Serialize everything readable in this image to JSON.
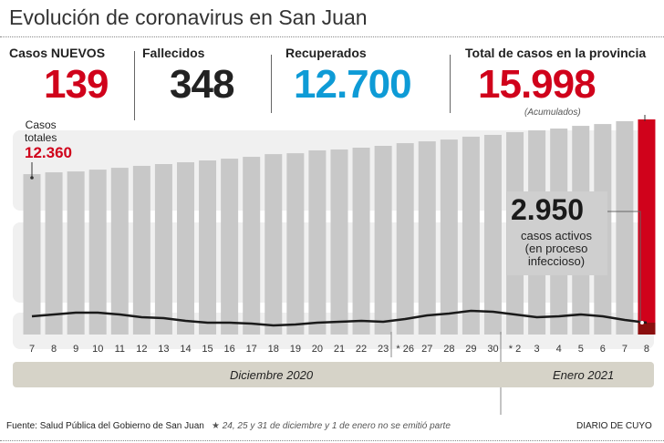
{
  "title": "Evolución de coronavirus en San Juan",
  "stats": {
    "new_cases": {
      "label": "Casos NUEVOS",
      "value": "139",
      "color": "#d0021b"
    },
    "deaths": {
      "label": "Fallecidos",
      "value": "348",
      "color": "#222222"
    },
    "recovered": {
      "label": "Recuperados",
      "value": "12.700",
      "color": "#0e9bd6"
    },
    "total": {
      "label": "Total de casos en la provincia",
      "value": "15.998",
      "note": "(Acumulados)",
      "color": "#d0021b"
    }
  },
  "annotations": {
    "first_label_1": "Casos",
    "first_label_2": "totales",
    "first_value": "12.360",
    "active_value": "2.950",
    "active_text_1": "casos activos",
    "active_text_2": "(en proceso",
    "active_text_3": "infeccioso)"
  },
  "chart_data": {
    "type": "bar",
    "categories": [
      "7",
      "8",
      "9",
      "10",
      "11",
      "12",
      "13",
      "14",
      "15",
      "16",
      "17",
      "18",
      "19",
      "20",
      "21",
      "22",
      "23",
      "26",
      "27",
      "28",
      "29",
      "30",
      "2",
      "3",
      "4",
      "5",
      "6",
      "7",
      "8"
    ],
    "tick_labels": [
      "7",
      "8",
      "9",
      "10",
      "11",
      "12",
      "13",
      "14",
      "15",
      "16",
      "17",
      "18",
      "19",
      "20",
      "21",
      "22",
      "23",
      "* 26",
      "27",
      "28",
      "29",
      "30",
      "* 2",
      "3",
      "4",
      "5",
      "6",
      "7",
      "8"
    ],
    "series": [
      {
        "key": "total",
        "values": [
          12360,
          12480,
          12540,
          12660,
          12780,
          12910,
          13030,
          13150,
          13270,
          13390,
          13510,
          13690,
          13750,
          13940,
          14000,
          14120,
          14240,
          14420,
          14540,
          14660,
          14850,
          14970,
          15150,
          15270,
          15390,
          15570,
          15690,
          15880,
          15998
        ]
      },
      {
        "key": "active",
        "type": "line",
        "values": [
          3370,
          3490,
          3610,
          3610,
          3490,
          3310,
          3250,
          3070,
          2950,
          2950,
          2890,
          2770,
          2830,
          2950,
          3010,
          3070,
          3010,
          3190,
          3430,
          3550,
          3730,
          3670,
          3490,
          3310,
          3370,
          3490,
          3370,
          3130,
          2950
        ]
      }
    ],
    "months": [
      "Diciembre 2020",
      "Enero 2021"
    ],
    "highlight_color": "#d0021b",
    "bar_color": "#c8c8c8",
    "ylim": [
      1700,
      16000
    ]
  },
  "footer": {
    "source": "Fuente: Salud Pública del Gobierno de San Juan",
    "note_star": "★",
    "note": "24, 25 y 31 de diciembre y 1 de enero no se emitió parte",
    "brand": "DIARIO DE CUYO"
  }
}
